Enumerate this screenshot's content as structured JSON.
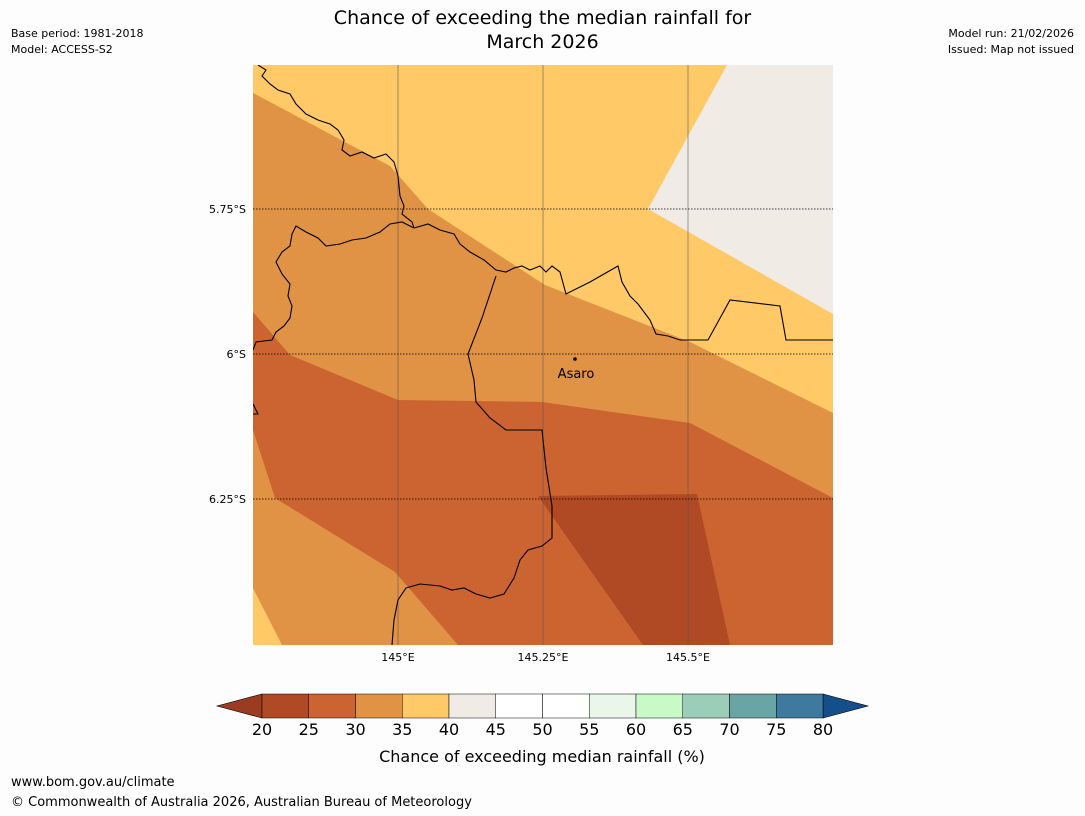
{
  "title_line1": "Chance of exceeding the median rainfall for",
  "title_line2": "March 2026",
  "meta_left": {
    "base_period": "Base period: 1981-2018",
    "model": "Model: ACCESS-S2"
  },
  "meta_right": {
    "model_run": "Model run: 21/02/2026",
    "issued": "Issued: Map not issued"
  },
  "map": {
    "lat_labels": [
      "5.75°S",
      "6°S",
      "6.25°S"
    ],
    "lon_labels": [
      "145°E",
      "145.25°E",
      "145.5°E"
    ],
    "place": {
      "name": "Asaro"
    },
    "fill_colors": {
      "c20_25": "#b04a24",
      "c25_30": "#cb6431",
      "c30_35": "#e09245",
      "c35_40": "#fec966",
      "c40_45": "#f0ebe5"
    }
  },
  "colorbar": {
    "ticks": [
      "20",
      "25",
      "30",
      "35",
      "40",
      "45",
      "50",
      "55",
      "60",
      "65",
      "70",
      "75",
      "80"
    ],
    "colors": [
      "#b04a24",
      "#cb6431",
      "#e09245",
      "#fec966",
      "#f0ebe5",
      "#ffffff",
      "#ffffff",
      "#eaf6ea",
      "#c8fac8",
      "#9ccdb8",
      "#6aa5a6",
      "#3e7a9e"
    ],
    "under_color": "#9b3c22",
    "over_color": "#154f8b",
    "label": "Chance of exceeding median rainfall (%)"
  },
  "footer": {
    "url": "www.bom.gov.au/climate",
    "copyright": "© Commonwealth of Australia 2026, Australian Bureau of Meteorology"
  }
}
